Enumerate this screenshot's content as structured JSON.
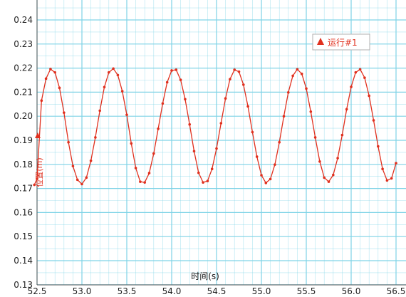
{
  "chart_data": {
    "type": "line",
    "xlabel": "时间(s)",
    "ylabel": "位置(m)",
    "xlim": [
      52.5,
      56.5
    ],
    "ylim": [
      0.13,
      0.245
    ],
    "x_ticks": [
      "52.5",
      "53.0",
      "53.5",
      "54.0",
      "54.5",
      "55.0",
      "55.5",
      "56.0",
      "56.5"
    ],
    "y_ticks": [
      "0.13",
      "0.14",
      "0.15",
      "0.16",
      "0.17",
      "0.18",
      "0.19",
      "0.20",
      "0.21",
      "0.22",
      "0.23",
      "0.24"
    ],
    "grid": true,
    "legend_position": "top-right",
    "series_color": "#e0301e",
    "grid_color": "#7fd3e6",
    "series": [
      {
        "name": "运行#1",
        "x": [
          52.47,
          52.5,
          52.55,
          52.6,
          52.65,
          52.7,
          52.75,
          52.8,
          52.85,
          52.9,
          52.95,
          53.0,
          53.05,
          53.1,
          53.15,
          53.2,
          53.25,
          53.3,
          53.35,
          53.4,
          53.45,
          53.5,
          53.55,
          53.6,
          53.65,
          53.7,
          53.75,
          53.8,
          53.85,
          53.9,
          53.95,
          54.0,
          54.05,
          54.1,
          54.15,
          54.2,
          54.25,
          54.3,
          54.35,
          54.4,
          54.45,
          54.5,
          54.55,
          54.6,
          54.65,
          54.7,
          54.75,
          54.8,
          54.85,
          54.9,
          54.95,
          55.0,
          55.05,
          55.1,
          55.15,
          55.2,
          55.25,
          55.3,
          55.35,
          55.4,
          55.45,
          55.5,
          55.55,
          55.6,
          55.65,
          55.7,
          55.75,
          55.8,
          55.85,
          55.9,
          55.95,
          56.0,
          56.05,
          56.1,
          56.15,
          56.2,
          56.25,
          56.3,
          56.35,
          56.4,
          56.45,
          56.5
        ],
        "values": [
          0.1715,
          0.174,
          0.2065,
          0.2156,
          0.2196,
          0.2182,
          0.2118,
          0.2015,
          0.1892,
          0.1793,
          0.1736,
          0.1718,
          0.1745,
          0.1815,
          0.1912,
          0.2023,
          0.2121,
          0.2182,
          0.2198,
          0.2171,
          0.2104,
          0.2006,
          0.1887,
          0.1785,
          0.1728,
          0.1725,
          0.1764,
          0.1845,
          0.1948,
          0.2053,
          0.2141,
          0.219,
          0.2193,
          0.2151,
          0.2071,
          0.1966,
          0.1855,
          0.1765,
          0.1725,
          0.1731,
          0.1781,
          0.1866,
          0.1971,
          0.2074,
          0.2154,
          0.2193,
          0.2185,
          0.2131,
          0.2041,
          0.1934,
          0.1832,
          0.1755,
          0.1723,
          0.1739,
          0.1799,
          0.1892,
          0.2,
          0.2099,
          0.2168,
          0.2195,
          0.2176,
          0.2115,
          0.2019,
          0.1912,
          0.1812,
          0.1745,
          0.1728,
          0.1756,
          0.1826,
          0.1922,
          0.2029,
          0.2122,
          0.2182,
          0.2195,
          0.216,
          0.2085,
          0.1983,
          0.1875,
          0.1781,
          0.1733,
          0.1742,
          0.1805
        ]
      }
    ]
  }
}
